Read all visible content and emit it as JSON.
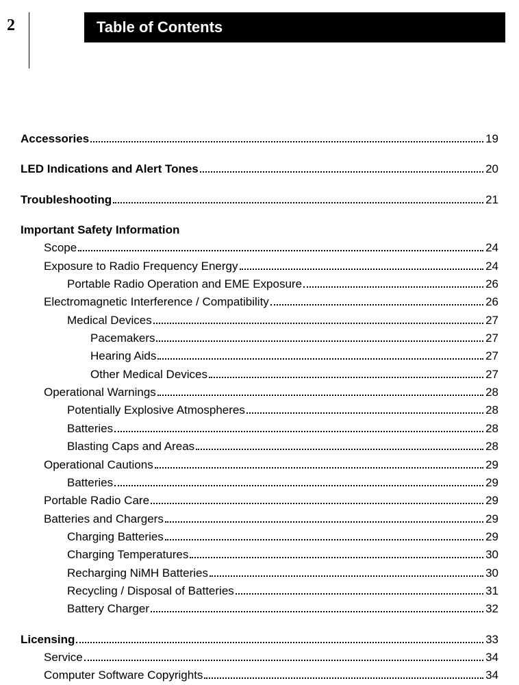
{
  "pageNumber": "2",
  "title": "Table of Contents",
  "entries": [
    {
      "label": "Accessories",
      "page": "19",
      "indent": 0,
      "bold": true,
      "gap": false
    },
    {
      "label": "LED Indications and Alert Tones",
      "page": "20",
      "indent": 0,
      "bold": true,
      "gap": true
    },
    {
      "label": "Troubleshooting",
      "page": "21",
      "indent": 0,
      "bold": true,
      "gap": true
    },
    {
      "label": "Important Safety Information",
      "page": "",
      "indent": 0,
      "bold": true,
      "gap": true,
      "headingOnly": true
    },
    {
      "label": "Scope",
      "page": "24",
      "indent": 1,
      "bold": false,
      "gap": false
    },
    {
      "label": "Exposure to Radio Frequency Energy",
      "page": "24",
      "indent": 1,
      "bold": false,
      "gap": false
    },
    {
      "label": "Portable Radio Operation and EME Exposure",
      "page": "26",
      "indent": 2,
      "bold": false,
      "gap": false
    },
    {
      "label": "Electromagnetic Interference / Compatibility",
      "page": "26",
      "indent": 1,
      "bold": false,
      "gap": false
    },
    {
      "label": "Medical Devices",
      "page": "27",
      "indent": 2,
      "bold": false,
      "gap": false
    },
    {
      "label": "Pacemakers",
      "page": "27",
      "indent": 3,
      "bold": false,
      "gap": false
    },
    {
      "label": "Hearing Aids",
      "page": "27",
      "indent": 3,
      "bold": false,
      "gap": false
    },
    {
      "label": "Other Medical Devices",
      "page": "27",
      "indent": 3,
      "bold": false,
      "gap": false
    },
    {
      "label": "Operational Warnings",
      "page": "28",
      "indent": 1,
      "bold": false,
      "gap": false
    },
    {
      "label": "Potentially Explosive Atmospheres",
      "page": "28",
      "indent": 2,
      "bold": false,
      "gap": false
    },
    {
      "label": "Batteries",
      "page": "28",
      "indent": 2,
      "bold": false,
      "gap": false
    },
    {
      "label": "Blasting Caps and Areas",
      "page": "28",
      "indent": 2,
      "bold": false,
      "gap": false
    },
    {
      "label": "Operational Cautions",
      "page": "29",
      "indent": 1,
      "bold": false,
      "gap": false
    },
    {
      "label": "Batteries",
      "page": "29",
      "indent": 2,
      "bold": false,
      "gap": false
    },
    {
      "label": "Portable Radio Care",
      "page": "29",
      "indent": 1,
      "bold": false,
      "gap": false
    },
    {
      "label": "Batteries and Chargers",
      "page": "29",
      "indent": 1,
      "bold": false,
      "gap": false
    },
    {
      "label": "Charging Batteries",
      "page": "29",
      "indent": 2,
      "bold": false,
      "gap": false
    },
    {
      "label": "Charging Temperatures",
      "page": "30",
      "indent": 2,
      "bold": false,
      "gap": false
    },
    {
      "label": "Recharging NiMH Batteries",
      "page": "30",
      "indent": 2,
      "bold": false,
      "gap": false
    },
    {
      "label": "Recycling / Disposal of Batteries",
      "page": "31",
      "indent": 2,
      "bold": false,
      "gap": false
    },
    {
      "label": "Battery Charger",
      "page": "32",
      "indent": 2,
      "bold": false,
      "gap": false
    },
    {
      "label": "Licensing",
      "page": "33",
      "indent": 0,
      "bold": true,
      "gap": true
    },
    {
      "label": "Service",
      "page": "34",
      "indent": 1,
      "bold": false,
      "gap": false
    },
    {
      "label": "Computer Software Copyrights",
      "page": "34",
      "indent": 1,
      "bold": false,
      "gap": false
    }
  ]
}
